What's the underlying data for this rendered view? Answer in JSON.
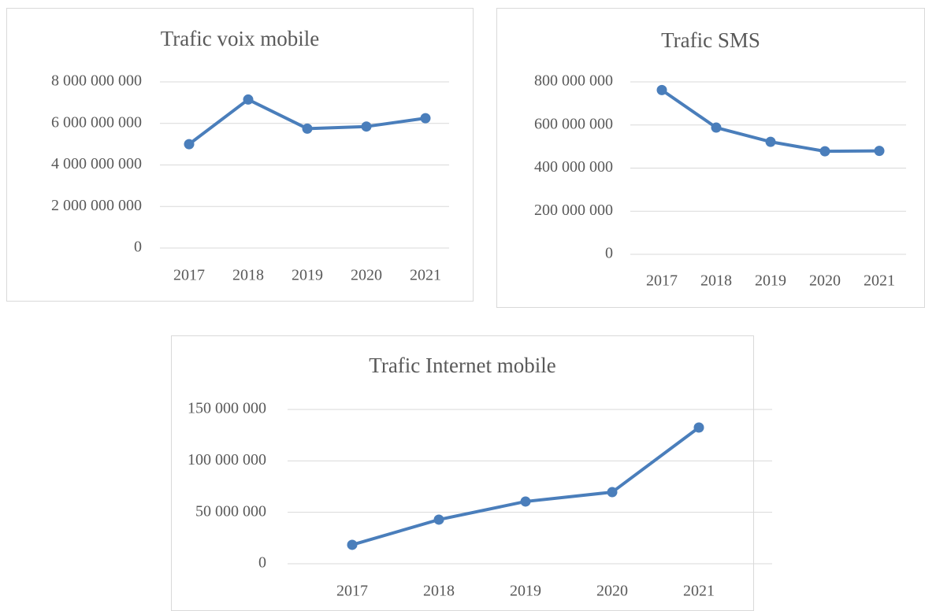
{
  "chart_data": [
    {
      "type": "line",
      "title": "Trafic voix mobile",
      "categories": [
        "2017",
        "2018",
        "2019",
        "2020",
        "2021"
      ],
      "series": [
        {
          "color": "#4a7ebb",
          "values": [
            5000000000,
            7150000000,
            5750000000,
            5850000000,
            6250000000
          ]
        }
      ],
      "ylim": [
        0,
        8000000000
      ],
      "yticks": [
        0,
        {
          "value": 2000000000,
          "label": "2 000 000 000"
        },
        {
          "value": 4000000000,
          "label": "4 000 000 000"
        },
        {
          "value": 6000000000,
          "label": "6 000 000 000"
        },
        {
          "value": 8000000000,
          "label": "8 000 000 000"
        }
      ],
      "grid": true
    },
    {
      "type": "line",
      "title": "Trafic SMS",
      "categories": [
        "2017",
        "2018",
        "2019",
        "2020",
        "2021"
      ],
      "series": [
        {
          "color": "#4a7ebb",
          "values": [
            762000000,
            588000000,
            522000000,
            478000000,
            480000000
          ]
        }
      ],
      "ylim": [
        0,
        800000000
      ],
      "yticks": [
        0,
        {
          "value": 200000000,
          "label": "200 000 000"
        },
        {
          "value": 400000000,
          "label": "400 000 000"
        },
        {
          "value": 600000000,
          "label": "600 000 000"
        },
        {
          "value": 800000000,
          "label": "800 000 000"
        }
      ],
      "grid": true
    },
    {
      "type": "line",
      "title": "Trafic Internet mobile",
      "categories": [
        "2017",
        "2018",
        "2019",
        "2020",
        "2021"
      ],
      "series": [
        {
          "color": "#4a7ebb",
          "values": [
            18400000,
            42900000,
            60500000,
            69600000,
            132400000
          ]
        }
      ],
      "ylim": [
        0,
        150000000
      ],
      "yticks": [
        0,
        {
          "value": 50000000,
          "label": "50 000 000"
        },
        {
          "value": 100000000,
          "label": "100 000 000"
        },
        {
          "value": 150000000,
          "label": "150 000 000"
        }
      ],
      "grid": true
    }
  ]
}
